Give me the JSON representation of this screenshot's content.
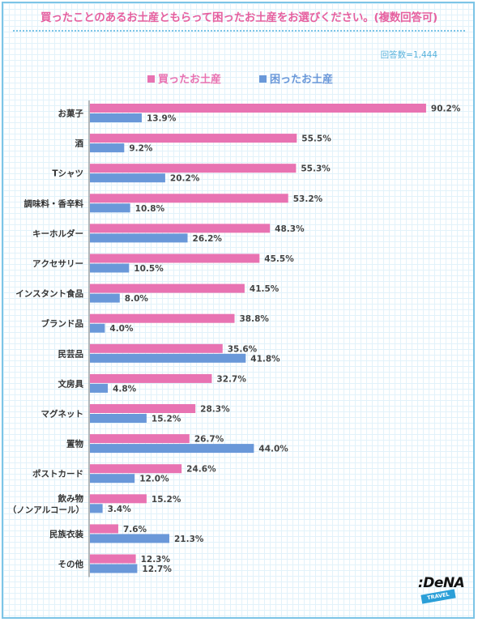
{
  "title": "買ったことのあるお土産ともらって困ったお土産をお選びください。(複数回答可)",
  "respondents": "回答数=1,444",
  "logo": {
    "main": ":DeNA",
    "sub": "TRAVEL"
  },
  "colors": {
    "bought": "#e873b2",
    "troubled": "#6a98d9",
    "accent": "#e6609f",
    "border": "#7cc4e6"
  },
  "chart_data": {
    "type": "bar",
    "orientation": "horizontal",
    "categories": [
      "お菓子",
      "酒",
      "Tシャツ",
      "調味料・香辛料",
      "キーホルダー",
      "アクセサリー",
      "インスタント食品",
      "ブランド品",
      "民芸品",
      "文房具",
      "マグネット",
      "置物",
      "ポストカード",
      "飲み物\n（ノンアルコール）",
      "民族衣装",
      "その他"
    ],
    "series": [
      {
        "name": "買ったお土産",
        "values": [
          90.2,
          55.5,
          55.3,
          53.2,
          48.3,
          45.5,
          41.5,
          38.8,
          35.6,
          32.7,
          28.3,
          26.7,
          24.6,
          15.2,
          7.6,
          12.3
        ]
      },
      {
        "name": "困ったお土産",
        "values": [
          13.9,
          9.2,
          20.2,
          10.8,
          26.2,
          10.5,
          8.0,
          4.0,
          41.8,
          4.8,
          15.2,
          44.0,
          12.0,
          3.4,
          21.3,
          12.7
        ]
      }
    ],
    "value_suffix": "%",
    "xlim": [
      0,
      100
    ],
    "legend_position": "top",
    "grid": false
  }
}
